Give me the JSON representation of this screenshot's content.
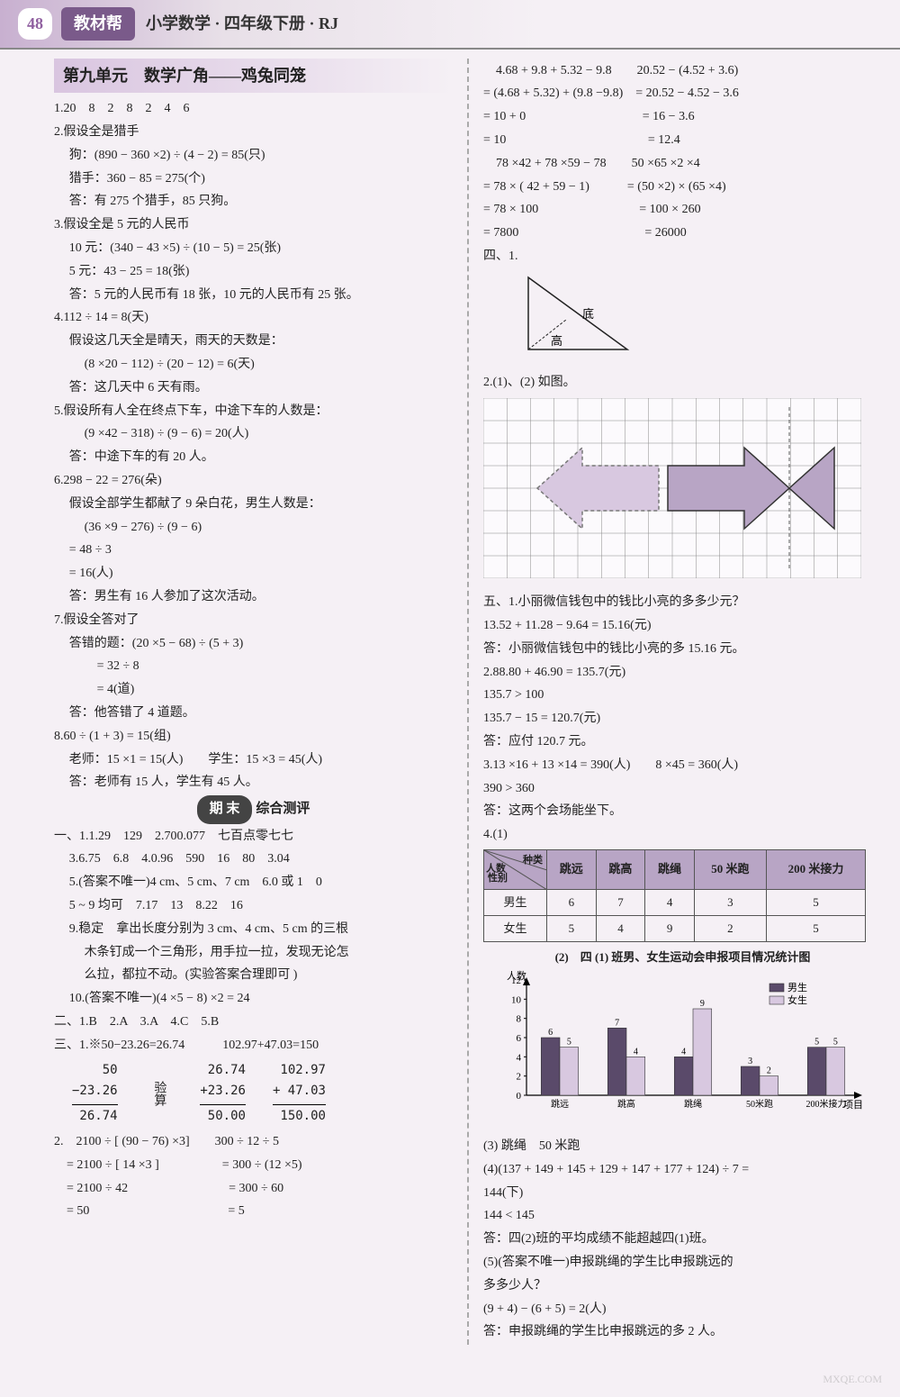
{
  "header": {
    "page_num": "48",
    "badge": "教材帮",
    "subtitle": "小学数学 · 四年级下册 · RJ"
  },
  "unit_title": "第九单元　数学广角——鸡兔同笼",
  "left": {
    "p1": "1.20　8　2　8　2　4　6",
    "p2a": "2.假设全是猎手",
    "p2b": "狗：(890 − 360 ×2) ÷ (4 − 2) = 85(只)",
    "p2c": "猎手：360 − 85 = 275(个)",
    "p2d": "答：有 275 个猎手，85 只狗。",
    "p3a": "3.假设全是 5 元的人民币",
    "p3b": "10 元：(340 − 43 ×5) ÷ (10 − 5) = 25(张)",
    "p3c": "5 元：43 − 25 = 18(张)",
    "p3d": "答：5 元的人民币有 18 张，10 元的人民币有 25 张。",
    "p4a": "4.112 ÷ 14 = 8(天)",
    "p4b": "假设这几天全是晴天，雨天的天数是：",
    "p4c": "(8 ×20 − 112) ÷ (20 − 12) = 6(天)",
    "p4d": "答：这几天中 6 天有雨。",
    "p5a": "5.假设所有人全在终点下车，中途下车的人数是：",
    "p5b": "(9 ×42 − 318) ÷ (9 − 6) = 20(人)",
    "p5c": "答：中途下车的有 20 人。",
    "p6a": "6.298 − 22 = 276(朵)",
    "p6b": "假设全部学生都献了 9 朵白花，男生人数是：",
    "p6c": "(36 ×9 − 276) ÷ (9 − 6)",
    "p6d": "= 48 ÷ 3",
    "p6e": "= 16(人)",
    "p6f": "答：男生有 16 人参加了这次活动。",
    "p7a": "7.假设全答对了",
    "p7b": "答错的题：(20 ×5 − 68) ÷ (5 + 3)",
    "p7c": "= 32 ÷ 8",
    "p7d": "= 4(道)",
    "p7e": "答：他答错了 4 道题。",
    "p8a": "8.60 ÷ (1 + 3) = 15(组)",
    "p8b": "老师：15 ×1 = 15(人)　　学生：15 ×3 = 45(人)",
    "p8c": "答：老师有 15 人，学生有 45 人。",
    "final_badge_head": "期 末",
    "final_badge_tail": "综合测评",
    "s1_1": "一、1.1.29　129　2.700.077　七百点零七七",
    "s1_2": "3.6.75　6.8　4.0.96　590　16　80　3.04",
    "s1_3": "5.(答案不唯一)4 cm、5 cm、7 cm　6.0 或 1　0",
    "s1_4": "5 ~ 9 均可　7.17　13　8.22　16",
    "s1_5": "9.稳定　拿出长度分别为 3 cm、4 cm、5 cm 的三根",
    "s1_5b": "木条钉成一个三角形，用手拉一拉，发现无论怎",
    "s1_5c": "么拉，都拉不动。(实验答案合理即可 )",
    "s1_6": "10.(答案不唯一)(4 ×5 − 8) ×2 = 24",
    "s2": "二、1.B　2.A　3.A　4.C　5.B",
    "s3_1": "三、1.※50−23.26=26.74　　　102.97+47.03=150",
    "vcalc": {
      "a": {
        "r1": "50",
        "r2": "−23.26",
        "r3": "26.74"
      },
      "note": "验算",
      "b": {
        "r1": "26.74",
        "r2": "+23.26",
        "r3": "50.00"
      },
      "c": {
        "r1": "102.97",
        "r2": "+ 47.03",
        "r3": "150.00"
      }
    },
    "s3_2a": "2.　2100 ÷ [ (90 − 76) ×3]　　300 ÷ 12 ÷ 5",
    "s3_2b": "　= 2100 ÷ [ 14 ×3 ]　　　　　= 300 ÷ (12 ×5)",
    "s3_2c": "　= 2100 ÷ 42　　　　　　　　= 300 ÷ 60",
    "s3_2d": "　= 50　　　　　　　　　　　= 5"
  },
  "right": {
    "r1a": "　4.68 + 9.8 + 5.32 − 9.8　　20.52 − (4.52 + 3.6)",
    "r1b": "= (4.68 + 5.32) + (9.8 −9.8)　= 20.52 − 4.52 − 3.6",
    "r1c": "= 10 + 0　　　　　　　　　 = 16 − 3.6",
    "r1d": "= 10　　　　　　　　　　　 = 12.4",
    "r2a": "　78 ×42 + 78 ×59 − 78　　50 ×65 ×2 ×4",
    "r2b": "= 78 × ( 42 + 59 − 1)　　　= (50 ×2) × (65 ×4)",
    "r2c": "= 78 × 100　　　　　　　　= 100 × 260",
    "r2d": "= 7800　　　　　　　　　　= 26000",
    "r4": "四、1.",
    "tri": {
      "label_base": "底",
      "label_height": "高"
    },
    "r4_2": "2.(1)、(2) 如图。",
    "grid_arrow": {
      "cols": 16,
      "rows": 8,
      "left_fill": "#c5b2d2",
      "right_fill": "#b8a5c5",
      "grid_color": "#888",
      "axis_color": "#555"
    },
    "r5_1": "五、1.小丽微信钱包中的钱比小亮的多多少元？",
    "r5_1b": "13.52 + 11.28 − 9.64 = 15.16(元)",
    "r5_1c": "答：小丽微信钱包中的钱比小亮的多 15.16 元。",
    "r5_2a": "2.88.80 + 46.90 = 135.7(元)",
    "r5_2b": "135.7 > 100",
    "r5_2c": "135.7 − 15 = 120.7(元)",
    "r5_2d": "答：应付 120.7 元。",
    "r5_3a": "3.13 ×16 + 13 ×14 = 390(人)　　8 ×45 = 360(人)",
    "r5_3b": "390 > 360",
    "r5_3c": "答：这两个会场能坐下。",
    "r5_4": "4.(1)",
    "table": {
      "diag_top": "种类",
      "diag_mid": "人数",
      "diag_bot": "性别",
      "columns": [
        "跳远",
        "跳高",
        "跳绳",
        "50 米跑",
        "200 米接力"
      ],
      "rows_label": [
        "男生",
        "女生"
      ],
      "rows": [
        [
          6,
          7,
          4,
          3,
          5
        ],
        [
          5,
          4,
          9,
          2,
          5
        ]
      ],
      "header_bg": "#b8a5c5",
      "border": "#555"
    },
    "chart_title": "(2)　四 (1) 班男、女生运动会申报项目情况统计图",
    "chart": {
      "ylabel": "人数",
      "xlabel": "项目",
      "legend": [
        "男生",
        "女生"
      ],
      "legend_colors": [
        "#5a4a6a",
        "#d8c8e0"
      ],
      "categories": [
        "跳远",
        "跳高",
        "跳绳",
        "50米跑",
        "200米接力"
      ],
      "series": [
        [
          6,
          7,
          4,
          3,
          5
        ],
        [
          5,
          4,
          9,
          2,
          5
        ]
      ],
      "yticks": [
        0,
        2,
        4,
        6,
        8,
        10,
        12
      ],
      "ylim": [
        0,
        12
      ],
      "bar_colors": [
        "#5a4a6a",
        "#d8c8e0"
      ],
      "bg": "#fdfcfe",
      "grid": "#999"
    },
    "r5_4_3": "(3) 跳绳　50 米跑",
    "r5_4_4a": "(4)(137 + 149 + 145 + 129 + 147 + 177 + 124) ÷ 7 =",
    "r5_4_4b": "144(下)",
    "r5_4_4c": "144 < 145",
    "r5_4_4d": "答：四(2)班的平均成绩不能超越四(1)班。",
    "r5_4_5a": "(5)(答案不唯一)申报跳绳的学生比申报跳远的",
    "r5_4_5b": "多多少人？",
    "r5_4_5c": "(9 + 4) − (6 + 5) = 2(人)",
    "r5_4_5d": "答：申报跳绳的学生比申报跳远的多 2 人。"
  },
  "watermark": "MXQE.COM"
}
